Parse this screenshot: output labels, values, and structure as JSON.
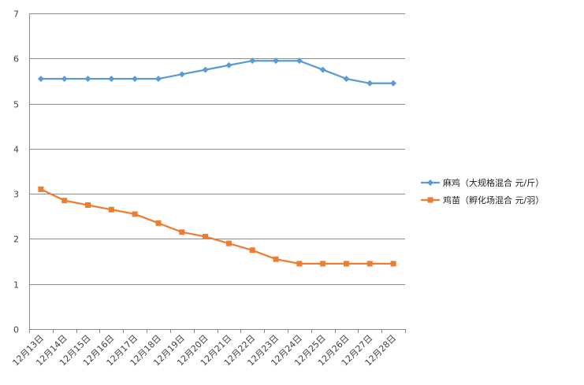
{
  "chart_data": {
    "type": "line",
    "title": "",
    "xlabel": "",
    "ylabel": "",
    "ylim": [
      0,
      7
    ],
    "y_ticks": [
      "0",
      "1",
      "2",
      "3",
      "4",
      "5",
      "6",
      "7"
    ],
    "grid": true,
    "legend_position": "right",
    "categories": [
      "12月13日",
      "12月14日",
      "12月15日",
      "12月16日",
      "12月17日",
      "12月18日",
      "12月19日",
      "12月20日",
      "12月21日",
      "12月22日",
      "12月23日",
      "12月24日",
      "12月25日",
      "12月26日",
      "12月27日",
      "12月28日"
    ],
    "series": [
      {
        "name": "麻鸡（大规格混合 元/斤）",
        "marker": "diamond",
        "color": "#5B9BD5",
        "values": [
          5.55,
          5.55,
          5.55,
          5.55,
          5.55,
          5.55,
          5.65,
          5.75,
          5.85,
          5.95,
          5.95,
          5.95,
          5.75,
          5.55,
          5.45,
          5.45
        ]
      },
      {
        "name": "鸡苗（孵化场混合 元/羽）",
        "marker": "square",
        "color": "#ED7D31",
        "values": [
          3.1,
          2.85,
          2.75,
          2.65,
          2.55,
          2.35,
          2.15,
          2.05,
          1.9,
          1.75,
          1.55,
          1.45,
          1.45,
          1.45,
          1.45,
          1.45
        ]
      }
    ]
  },
  "colors": {
    "gridline": "#8C8C8C",
    "axis": "#8C8C8C",
    "series_1": "#5B9BD5",
    "series_2": "#ED7D31"
  }
}
